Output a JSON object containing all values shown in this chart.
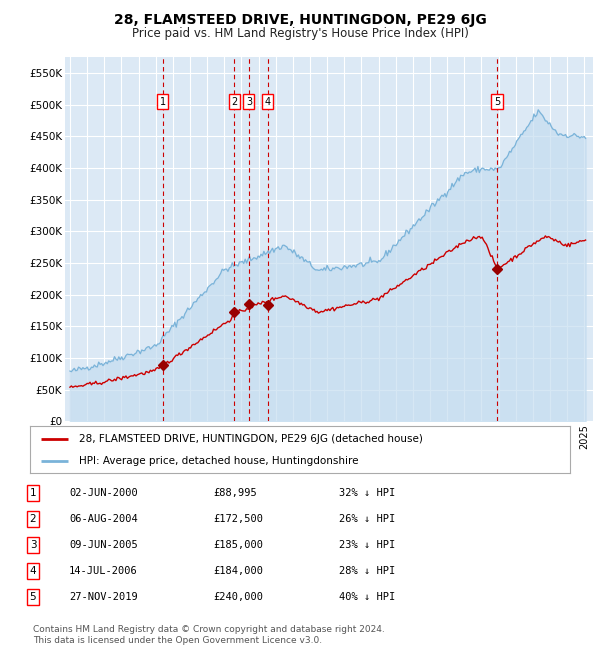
{
  "title": "28, FLAMSTEED DRIVE, HUNTINGDON, PE29 6JG",
  "subtitle": "Price paid vs. HM Land Registry's House Price Index (HPI)",
  "background_color": "#ffffff",
  "plot_bg_color": "#dce9f5",
  "grid_color": "#ffffff",
  "ylim": [
    0,
    575000
  ],
  "yticks": [
    0,
    50000,
    100000,
    150000,
    200000,
    250000,
    300000,
    350000,
    400000,
    450000,
    500000,
    550000
  ],
  "ytick_labels": [
    "£0",
    "£50K",
    "£100K",
    "£150K",
    "£200K",
    "£250K",
    "£300K",
    "£350K",
    "£400K",
    "£450K",
    "£500K",
    "£550K"
  ],
  "x_start_year": 1995,
  "x_end_year": 2025,
  "hpi_color": "#7ab3d9",
  "hpi_fill_color": "#c5ddf0",
  "price_color": "#cc0000",
  "sale_marker_color": "#990000",
  "vline_color": "#cc0000",
  "purchases": [
    {
      "label": "1",
      "date_num": 2000.42,
      "price": 88995
    },
    {
      "label": "2",
      "date_num": 2004.59,
      "price": 172500
    },
    {
      "label": "3",
      "date_num": 2005.44,
      "price": 185000
    },
    {
      "label": "4",
      "date_num": 2006.54,
      "price": 184000
    },
    {
      "label": "5",
      "date_num": 2019.91,
      "price": 240000
    }
  ],
  "legend_line1": "28, FLAMSTEED DRIVE, HUNTINGDON, PE29 6JG (detached house)",
  "legend_line2": "HPI: Average price, detached house, Huntingdonshire",
  "table_rows": [
    {
      "num": "1",
      "date": "02-JUN-2000",
      "price": "£88,995",
      "note": "32% ↓ HPI"
    },
    {
      "num": "2",
      "date": "06-AUG-2004",
      "price": "£172,500",
      "note": "26% ↓ HPI"
    },
    {
      "num": "3",
      "date": "09-JUN-2005",
      "price": "£185,000",
      "note": "23% ↓ HPI"
    },
    {
      "num": "4",
      "date": "14-JUL-2006",
      "price": "£184,000",
      "note": "28% ↓ HPI"
    },
    {
      "num": "5",
      "date": "27-NOV-2019",
      "price": "£240,000",
      "note": "40% ↓ HPI"
    }
  ],
  "footnote": "Contains HM Land Registry data © Crown copyright and database right 2024.\nThis data is licensed under the Open Government Licence v3.0."
}
